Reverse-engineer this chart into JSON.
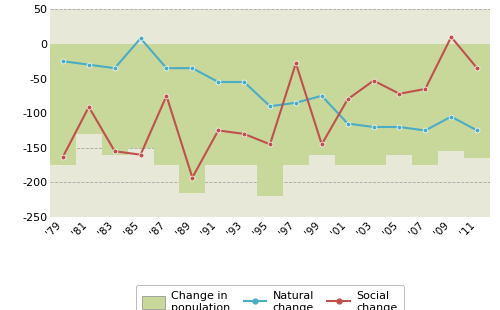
{
  "years": [
    "'79",
    "'81",
    "'83",
    "'85",
    "'87",
    "'89",
    "'91",
    "'93",
    "'95",
    "'97",
    "'99",
    "'01",
    "'03",
    "'05",
    "'07",
    "'09",
    "'11"
  ],
  "change_in_population": [
    -175,
    -130,
    -160,
    -150,
    -175,
    -215,
    -175,
    -175,
    -220,
    -175,
    -160,
    -175,
    -175,
    -160,
    -175,
    -155,
    -165
  ],
  "natural_change": [
    -25,
    -30,
    -35,
    8,
    -35,
    -35,
    -55,
    -55,
    -90,
    -85,
    -75,
    -115,
    -120,
    -120,
    -125,
    -105,
    -125
  ],
  "social_change": [
    -163,
    -91,
    -155,
    -160,
    -75,
    -193,
    -125,
    -130,
    -145,
    -28,
    -145,
    -80,
    -53,
    -72,
    -65,
    10,
    -35
  ],
  "bar_color": "#c8d89a",
  "natural_color": "#4bacc6",
  "social_color": "#c0504d",
  "ylim": [
    -250,
    50
  ],
  "yticks": [
    50,
    0,
    -50,
    -100,
    -150,
    -200,
    -250
  ],
  "plot_bg": "#e8e8d8",
  "grid_color": "#999999",
  "legend_labels": [
    "Change in\npopulation",
    "Natural\nchange",
    "Social\nchange"
  ]
}
